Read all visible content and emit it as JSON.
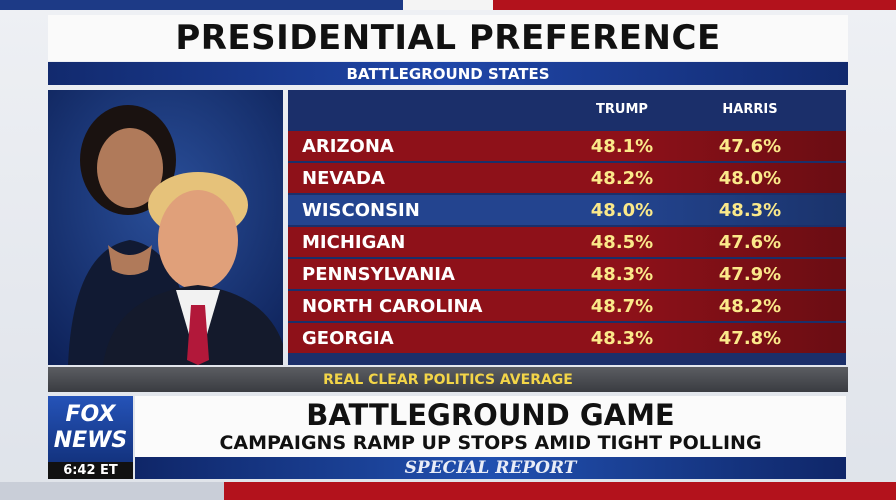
{
  "header": {
    "title": "PRESIDENTIAL PREFERENCE",
    "subtitle": "BATTLEGROUND STATES"
  },
  "table": {
    "columns": [
      "TRUMP",
      "HARRIS"
    ],
    "rows": [
      {
        "state": "ARIZONA",
        "values": [
          "48.1%",
          "47.6%"
        ],
        "color": "#8e1119"
      },
      {
        "state": "NEVADA",
        "values": [
          "48.2%",
          "48.0%"
        ],
        "color": "#8e1119"
      },
      {
        "state": "WISCONSIN",
        "values": [
          "48.0%",
          "48.3%"
        ],
        "color": "#23448f"
      },
      {
        "state": "MICHIGAN",
        "values": [
          "48.5%",
          "47.6%"
        ],
        "color": "#8e1119"
      },
      {
        "state": "PENNSYLVANIA",
        "values": [
          "48.3%",
          "47.9%"
        ],
        "color": "#8e1119"
      },
      {
        "state": "NORTH CAROLINA",
        "values": [
          "48.7%",
          "48.2%"
        ],
        "color": "#8e1119"
      },
      {
        "state": "GEORGIA",
        "values": [
          "48.3%",
          "47.8%"
        ],
        "color": "#8e1119"
      }
    ],
    "source": "REAL CLEAR POLITICS AVERAGE"
  },
  "lower_third": {
    "logo": [
      "FOX",
      "NEWS"
    ],
    "time": "6:42 ET",
    "headline": "BATTLEGROUND GAME",
    "subheadline": "CAMPAIGNS RAMP UP STOPS AMID TIGHT POLLING",
    "show": "SPECIAL REPORT"
  }
}
